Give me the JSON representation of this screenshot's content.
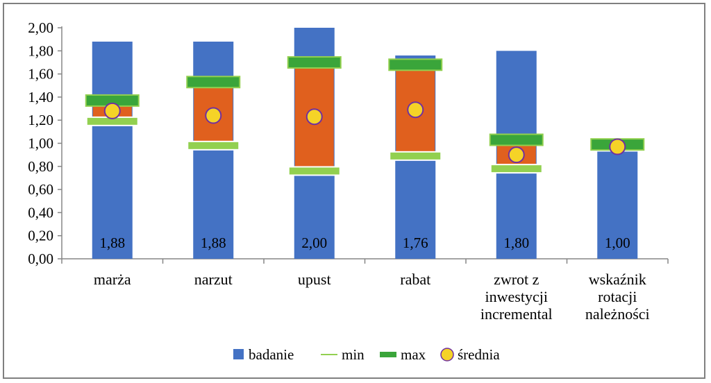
{
  "chart_data": {
    "type": "bar",
    "title": "",
    "xlabel": "",
    "ylabel": "",
    "ylim": [
      0,
      2
    ],
    "ytick_step": 0.2,
    "ytick_labels": [
      "0,00",
      "0,20",
      "0,40",
      "0,60",
      "0,80",
      "1,00",
      "1,20",
      "1,40",
      "1,60",
      "1,80",
      "2,00"
    ],
    "grid": false,
    "legend_position": "bottom",
    "categories": [
      [
        "marża"
      ],
      [
        "narzut"
      ],
      [
        "upust"
      ],
      [
        "rabat"
      ],
      [
        "zwrot z",
        "inwestycji",
        "incremental"
      ],
      [
        "wskaźnik",
        "rotacji",
        "należności"
      ]
    ],
    "series": [
      {
        "name": "badanie",
        "kind": "bar",
        "color": "#4472c4",
        "values": [
          1.88,
          1.88,
          2.0,
          1.76,
          1.8,
          1.0
        ]
      },
      {
        "name": "min",
        "kind": "marker-thin",
        "color": "#92d050",
        "values": [
          1.19,
          0.98,
          0.76,
          0.89,
          0.78,
          0.97
        ]
      },
      {
        "name": "max",
        "kind": "marker-thick",
        "color": "#3aa53a",
        "values": [
          1.37,
          1.53,
          1.7,
          1.68,
          1.03,
          0.99
        ]
      },
      {
        "name": "średnia",
        "kind": "circle",
        "color": "#f5d327",
        "edge": "#7030a0",
        "values": [
          1.28,
          1.24,
          1.23,
          1.29,
          0.9,
          0.97
        ]
      }
    ],
    "range_fill_color": "#e0601e",
    "data_labels": [
      "1,88",
      "1,88",
      "2,00",
      "1,76",
      "1,80",
      "1,00"
    ]
  }
}
